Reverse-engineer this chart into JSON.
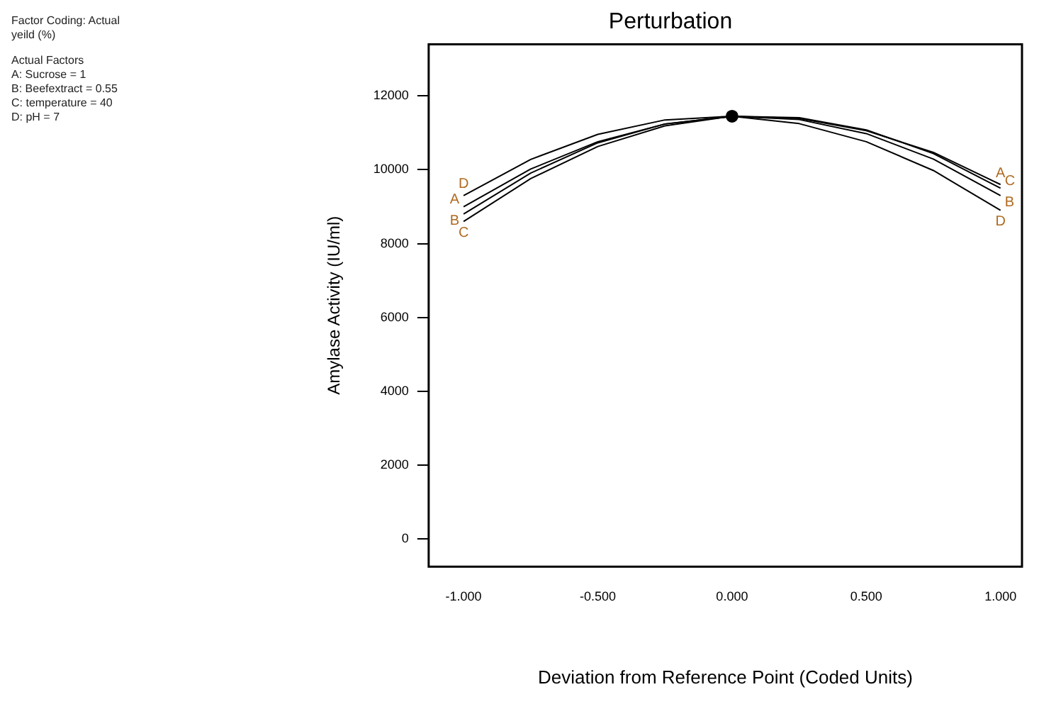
{
  "chart_data": {
    "type": "line",
    "title": "Perturbation",
    "xlabel": "Deviation from Reference Point (Coded Units)",
    "ylabel": "Amylase Activity (IU/ml)",
    "x": [
      -1,
      -0.75,
      -0.5,
      -0.25,
      0,
      0.25,
      0.5,
      0.75,
      1
    ],
    "series": [
      {
        "name": "A",
        "color": "#000000",
        "values": [
          9000,
          10020,
          10760,
          11240,
          11450,
          11390,
          11060,
          10470,
          9600
        ]
      },
      {
        "name": "B",
        "color": "#000000",
        "values": [
          8800,
          9910,
          10730,
          11240,
          11450,
          11360,
          10980,
          10290,
          9300
        ]
      },
      {
        "name": "C",
        "color": "#000000",
        "values": [
          8600,
          9760,
          10630,
          11190,
          11450,
          11410,
          11080,
          10440,
          9500
        ]
      },
      {
        "name": "D",
        "color": "#000000",
        "values": [
          9300,
          10280,
          10960,
          11350,
          11450,
          11250,
          10760,
          9980,
          8900
        ]
      },
      {
        "type": "scatter",
        "color": "#000000",
        "marker": "circle",
        "x": [
          0
        ],
        "values": [
          11450
        ]
      }
    ],
    "xlim": [
      -1.13,
      1.08
    ],
    "xticks": [
      {
        "value": -1,
        "label": "-1.000"
      },
      {
        "value": -0.5,
        "label": "-0.500"
      },
      {
        "value": 0,
        "label": "0.000"
      },
      {
        "value": 0.5,
        "label": "0.500"
      },
      {
        "value": 1,
        "label": "1.000"
      }
    ],
    "ylim": [
      -750,
      13400
    ],
    "yticks": [
      0,
      2000,
      4000,
      6000,
      8000,
      10000,
      12000
    ],
    "grid": false,
    "legend": false,
    "marker": "none",
    "line_style": "solid",
    "annotations": [
      "Factor Coding: Actual",
      "yeild (%)",
      "Actual Factors",
      "A: Sucrose = 1",
      "B: Beefextract = 0.55",
      "C: temperature = 40",
      "D: pH = 7"
    ]
  }
}
